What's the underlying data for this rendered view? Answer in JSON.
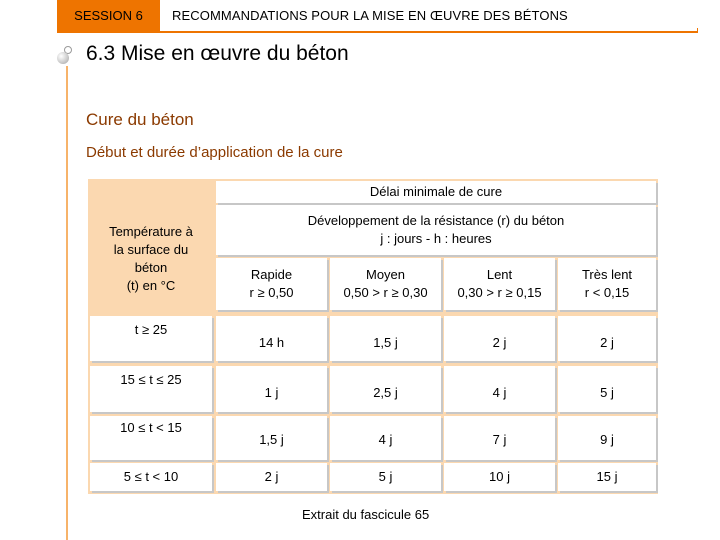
{
  "header": {
    "session": "SESSION 6",
    "title": "RECOMMANDATIONS POUR LA MISE EN ŒUVRE DES BÉTONS"
  },
  "section": {
    "title": "6.3 Mise en œuvre du béton"
  },
  "content": {
    "heading": "Cure du béton",
    "subheading": "Début et durée d’application de la cure"
  },
  "table": {
    "group_header": "Délai minimale de cure",
    "row_header": {
      "line1": "Température à",
      "line2": "la surface du",
      "line3": "béton",
      "line4": "(t) en °C"
    },
    "dev_header": {
      "line1": "Développement de la résistance (r) du béton",
      "line2": "j : jours   -   h : heures"
    },
    "columns": [
      {
        "name": "Rapide",
        "cond": "r ≥ 0,50"
      },
      {
        "name": "Moyen",
        "cond": "0,50 > r ≥ 0,30"
      },
      {
        "name": "Lent",
        "cond": "0,30 > r ≥ 0,15"
      },
      {
        "name": "Très lent",
        "cond": "r < 0,15"
      }
    ],
    "rows": [
      {
        "temp": "t ≥ 25",
        "values": [
          "14 h",
          "1,5 j",
          "2 j",
          "2 j"
        ]
      },
      {
        "temp": "15 ≤ t ≤ 25",
        "values": [
          "1 j",
          "2,5 j",
          "4 j",
          "5 j"
        ]
      },
      {
        "temp": "10 ≤ t < 15",
        "values": [
          "1,5 j",
          "4 j",
          "7 j",
          "9 j"
        ]
      },
      {
        "temp": "5 ≤ t < 10",
        "values": [
          "2 j",
          "5 j",
          "10 j",
          "15 j"
        ]
      }
    ]
  },
  "source": "Extrait du fascicule 65"
}
